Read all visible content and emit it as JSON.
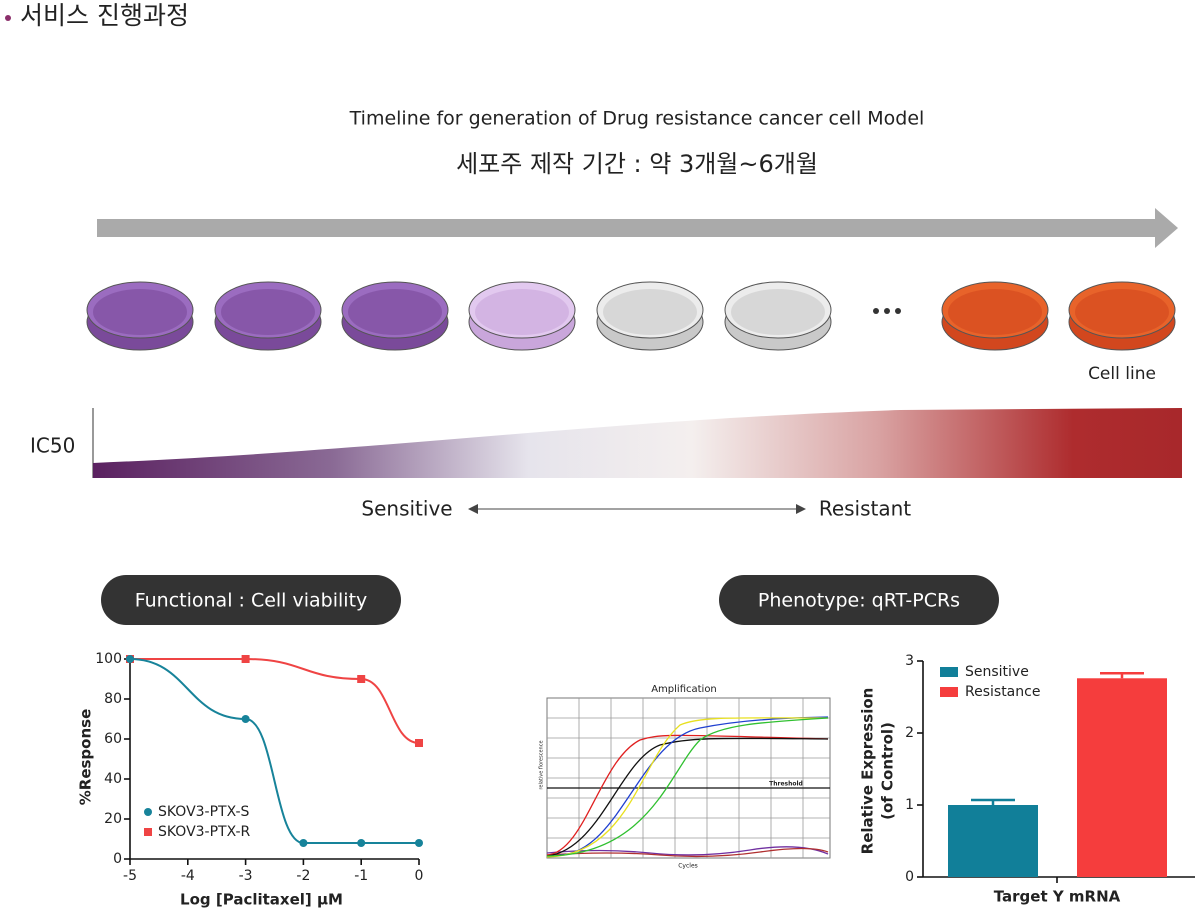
{
  "header": {
    "title": "서비스 진행과정"
  },
  "timeline": {
    "title": "Timeline for generation of Drug resistance cancer cell Model",
    "subtitle": "세포주 제작 기간 : 약 3개월~6개월",
    "end_label": "Cell line"
  },
  "ic50": {
    "label": "IC50",
    "left": "Sensitive",
    "right": "Resistant"
  },
  "sections": [
    "Functional : Cell viability",
    "Phenotype: qRT-PCRs"
  ],
  "amplification": {
    "title": "Amplification",
    "y_label": "relative florescence",
    "x_label": "Cycles",
    "threshold": "Threshold"
  },
  "chart_data": [
    {
      "type": "line",
      "x_label": "Log [Paclitaxel] μM",
      "y_label": "%Response",
      "xlim": [
        -5,
        0
      ],
      "xticks": [
        -5,
        -4,
        -3,
        -2,
        -1,
        0
      ],
      "ylim": [
        0,
        100
      ],
      "yticks": [
        0,
        20,
        40,
        60,
        80,
        100
      ],
      "series": [
        {
          "name": "SKOV3-PTX-S",
          "color": "#17839a",
          "marker": "circle",
          "x": [
            -5,
            -3,
            -2,
            -1,
            0
          ],
          "values": [
            100,
            70,
            8,
            8,
            8
          ]
        },
        {
          "name": "SKOV3-PTX-R",
          "color": "#ef4444",
          "marker": "square",
          "x": [
            -5,
            -3,
            -1,
            0
          ],
          "values": [
            100,
            100,
            90,
            58
          ]
        }
      ]
    },
    {
      "type": "bar",
      "x_label": "Target Y mRNA",
      "y_label": [
        "Relative Expression",
        "(of Control)"
      ],
      "ylim": [
        0,
        3
      ],
      "yticks": [
        0,
        1,
        2,
        3
      ],
      "series": [
        {
          "name": "Sensitive",
          "color": "#117f99",
          "values": [
            1.0
          ],
          "errors": [
            0.07
          ]
        },
        {
          "name": "Resistance",
          "color": "#f53d3d",
          "values": [
            2.76
          ],
          "errors": [
            0.07
          ]
        }
      ]
    }
  ]
}
